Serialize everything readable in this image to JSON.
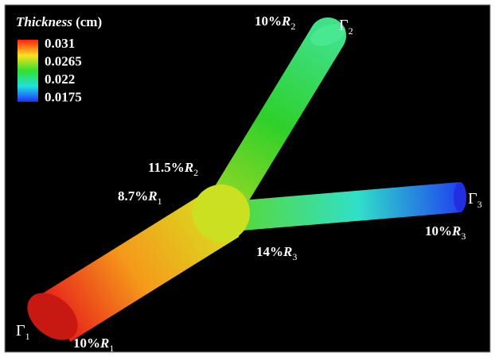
{
  "legend": {
    "title": {
      "quantity": "Thickness",
      "unit": "(cm)"
    },
    "ticks": [
      "0.031",
      "0.0265",
      "0.022",
      "0.0175"
    ]
  },
  "annotations": [
    {
      "prefix": "10%",
      "var": "R",
      "sub": "2"
    },
    {
      "symbol": "Γ",
      "sub": "2"
    },
    {
      "prefix": "11.5%",
      "var": "R",
      "sub": "2"
    },
    {
      "prefix": "8.7%",
      "var": "R",
      "sub": "1"
    },
    {
      "symbol": "Γ",
      "sub": "3"
    },
    {
      "prefix": "10%",
      "var": "R",
      "sub": "3"
    },
    {
      "prefix": "14%",
      "var": "R",
      "sub": "3"
    },
    {
      "symbol": "Γ",
      "sub": "1"
    },
    {
      "prefix": "10%",
      "var": "R",
      "sub": "1"
    }
  ]
}
